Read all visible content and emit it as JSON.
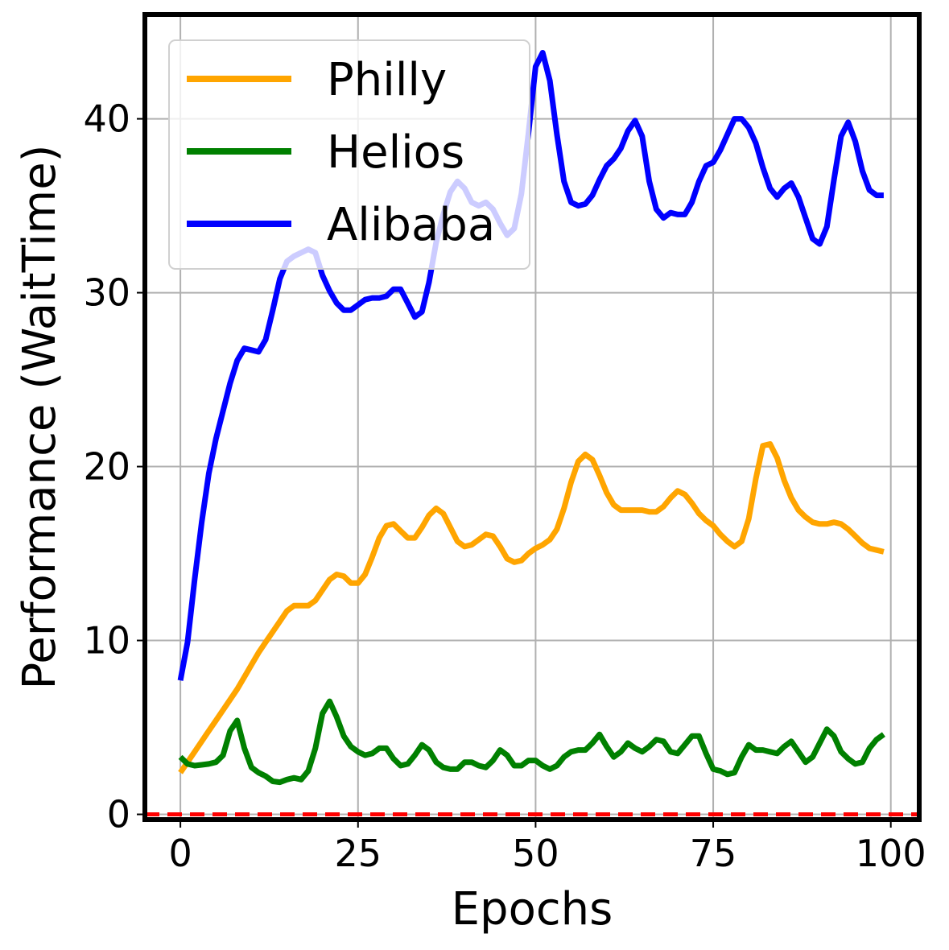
{
  "chart_data": {
    "type": "line",
    "title": "",
    "xlabel": "Epochs",
    "ylabel": "Performance (WaitTime)",
    "xlim": [
      -5,
      104
    ],
    "ylim": [
      -0.3,
      46
    ],
    "xticks": [
      0,
      25,
      50,
      75,
      100
    ],
    "yticks": [
      0,
      10,
      20,
      30,
      40
    ],
    "grid": true,
    "legend_position": "top-left",
    "baseline": {
      "y": 0,
      "color": "#ff0000",
      "style": "dashed"
    },
    "x": [
      0,
      1,
      2,
      3,
      4,
      5,
      6,
      7,
      8,
      9,
      10,
      11,
      12,
      13,
      14,
      15,
      16,
      17,
      18,
      19,
      20,
      21,
      22,
      23,
      24,
      25,
      26,
      27,
      28,
      29,
      30,
      31,
      32,
      33,
      34,
      35,
      36,
      37,
      38,
      39,
      40,
      41,
      42,
      43,
      44,
      45,
      46,
      47,
      48,
      49,
      50,
      51,
      52,
      53,
      54,
      55,
      56,
      57,
      58,
      59,
      60,
      61,
      62,
      63,
      64,
      65,
      66,
      67,
      68,
      69,
      70,
      71,
      72,
      73,
      74,
      75,
      76,
      77,
      78,
      79,
      80,
      81,
      82,
      83,
      84,
      85,
      86,
      87,
      88,
      89,
      90,
      91,
      92,
      93,
      94,
      95,
      96,
      97,
      98,
      99
    ],
    "series": [
      {
        "name": "Philly",
        "color": "#ffa500",
        "values": [
          2.4,
          3.0,
          3.6,
          4.2,
          4.8,
          5.4,
          6.0,
          6.6,
          7.2,
          7.9,
          8.6,
          9.3,
          9.9,
          10.5,
          11.1,
          11.7,
          12.0,
          12.0,
          12.0,
          12.3,
          12.9,
          13.5,
          13.8,
          13.7,
          13.3,
          13.3,
          13.8,
          14.8,
          15.9,
          16.6,
          16.7,
          16.3,
          15.9,
          15.9,
          16.5,
          17.2,
          17.6,
          17.3,
          16.5,
          15.7,
          15.4,
          15.5,
          15.8,
          16.1,
          16.0,
          15.4,
          14.7,
          14.5,
          14.6,
          15.0,
          15.3,
          15.5,
          15.8,
          16.4,
          17.6,
          19.1,
          20.3,
          20.7,
          20.4,
          19.5,
          18.5,
          17.8,
          17.5,
          17.5,
          17.5,
          17.5,
          17.4,
          17.4,
          17.7,
          18.2,
          18.6,
          18.4,
          17.9,
          17.3,
          16.9,
          16.6,
          16.1,
          15.7,
          15.4,
          15.7,
          17.0,
          19.3,
          21.2,
          21.3,
          20.5,
          19.2,
          18.2,
          17.5,
          17.1,
          16.8,
          16.7,
          16.7,
          16.8,
          16.7,
          16.4,
          16.0,
          15.6,
          15.3,
          15.2,
          15.1
        ]
      },
      {
        "name": "Helios",
        "color": "#008000",
        "values": [
          3.3,
          2.9,
          2.8,
          2.85,
          2.9,
          3.0,
          3.4,
          4.8,
          5.4,
          3.8,
          2.7,
          2.4,
          2.2,
          1.9,
          1.85,
          2.0,
          2.1,
          2.0,
          2.5,
          3.8,
          5.8,
          6.5,
          5.6,
          4.5,
          3.9,
          3.6,
          3.4,
          3.5,
          3.8,
          3.8,
          3.2,
          2.8,
          2.9,
          3.4,
          4.0,
          3.7,
          3.0,
          2.7,
          2.6,
          2.6,
          3.0,
          3.0,
          2.8,
          2.7,
          3.1,
          3.7,
          3.4,
          2.8,
          2.8,
          3.1,
          3.1,
          2.8,
          2.6,
          2.8,
          3.3,
          3.6,
          3.7,
          3.7,
          4.1,
          4.6,
          3.9,
          3.3,
          3.6,
          4.1,
          3.8,
          3.6,
          3.9,
          4.3,
          4.2,
          3.6,
          3.5,
          4.0,
          4.5,
          4.5,
          3.5,
          2.6,
          2.5,
          2.3,
          2.4,
          3.3,
          4.0,
          3.7,
          3.7,
          3.6,
          3.5,
          3.9,
          4.2,
          3.6,
          3.0,
          3.3,
          4.1,
          4.9,
          4.5,
          3.6,
          3.2,
          2.9,
          3.0,
          3.8,
          4.3,
          4.6
        ]
      },
      {
        "name": "Alibaba",
        "color": "#0000ff",
        "values": [
          7.7,
          9.9,
          13.5,
          16.8,
          19.6,
          21.6,
          23.2,
          24.8,
          26.1,
          26.8,
          26.7,
          26.6,
          27.3,
          29.0,
          30.8,
          31.8,
          32.1,
          32.3,
          32.5,
          32.3,
          31.0,
          30.1,
          29.4,
          29.0,
          29.0,
          29.3,
          29.6,
          29.7,
          29.7,
          29.8,
          30.2,
          30.2,
          29.4,
          28.6,
          28.9,
          30.6,
          32.9,
          34.5,
          35.8,
          36.4,
          36.0,
          35.2,
          35.0,
          35.2,
          34.8,
          34.0,
          33.3,
          33.7,
          35.7,
          39.2,
          43.0,
          43.8,
          42.2,
          39.1,
          36.4,
          35.2,
          35.0,
          35.1,
          35.6,
          36.5,
          37.3,
          37.7,
          38.3,
          39.3,
          39.9,
          39.0,
          36.4,
          34.8,
          34.3,
          34.6,
          34.5,
          34.5,
          35.2,
          36.4,
          37.3,
          37.5,
          38.2,
          39.1,
          40.0,
          40.0,
          39.5,
          38.6,
          37.2,
          36.0,
          35.5,
          36.0,
          36.3,
          35.5,
          34.3,
          33.1,
          32.8,
          33.8,
          36.5,
          39.0,
          39.8,
          38.7,
          37.0,
          35.9,
          35.6,
          35.6
        ]
      }
    ]
  }
}
